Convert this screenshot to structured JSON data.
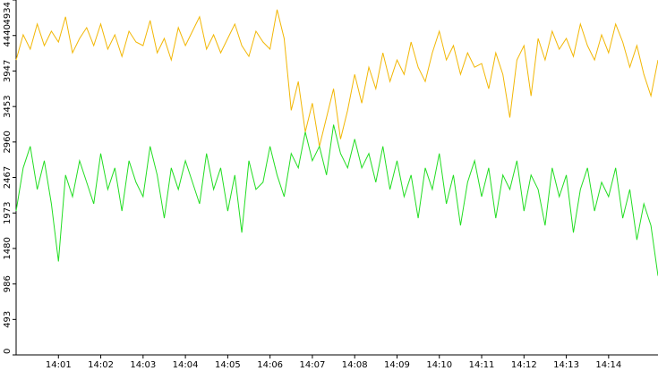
{
  "chart_data": {
    "type": "line",
    "categories": [
      null,
      null,
      null,
      null,
      null,
      null,
      "14:01",
      null,
      null,
      null,
      null,
      null,
      "14:02",
      null,
      null,
      null,
      null,
      null,
      "14:03",
      null,
      null,
      null,
      null,
      null,
      "14:04",
      null,
      null,
      null,
      null,
      null,
      "14:05",
      null,
      null,
      null,
      null,
      null,
      "14:06",
      null,
      null,
      null,
      null,
      null,
      "14:07",
      null,
      null,
      null,
      null,
      null,
      "14:08",
      null,
      null,
      null,
      null,
      null,
      "14:09",
      null,
      null,
      null,
      null,
      null,
      "14:10",
      null,
      null,
      null,
      null,
      null,
      "14:11",
      null,
      null,
      null,
      null,
      null,
      "14:12",
      null,
      null,
      null,
      null,
      null,
      "14:13",
      null,
      null,
      null,
      null,
      null,
      "14:14",
      null,
      null,
      null,
      null,
      null,
      null,
      null
    ],
    "series": [
      {
        "color": "#f2b705",
        "values": [
          4100,
          4450,
          4250,
          4600,
          4300,
          4500,
          4350,
          4700,
          4200,
          4400,
          4550,
          4300,
          4600,
          4250,
          4450,
          4150,
          4500,
          4350,
          4300,
          4650,
          4200,
          4400,
          4100,
          4550,
          4300,
          4500,
          4700,
          4250,
          4450,
          4200,
          4400,
          4600,
          4300,
          4150,
          4500,
          4350,
          4250,
          4800,
          4400,
          3400,
          3800,
          3100,
          3500,
          2900,
          3300,
          3700,
          3000,
          3400,
          3900,
          3500,
          4000,
          3700,
          4200,
          3800,
          4100,
          3900,
          4350,
          4000,
          3800,
          4200,
          4500,
          4100,
          4300,
          3900,
          4200,
          4000,
          4050,
          3700,
          4200,
          3900,
          3300,
          4100,
          4300,
          3600,
          4400,
          4100,
          4500,
          4250,
          4400,
          4150,
          4600,
          4300,
          4100,
          4450,
          4200,
          4600,
          4350,
          4000,
          4300,
          3900,
          3600,
          4100
        ]
      },
      {
        "color": "#22dd22",
        "values": [
          2000,
          2600,
          2900,
          2300,
          2700,
          2100,
          1300,
          2500,
          2200,
          2700,
          2400,
          2100,
          2800,
          2300,
          2600,
          2000,
          2700,
          2400,
          2200,
          2900,
          2500,
          1900,
          2600,
          2300,
          2700,
          2400,
          2100,
          2800,
          2300,
          2600,
          2000,
          2500,
          1700,
          2700,
          2300,
          2400,
          2900,
          2500,
          2200,
          2800,
          2600,
          3100,
          2700,
          2900,
          2500,
          3200,
          2800,
          2600,
          3000,
          2600,
          2800,
          2400,
          2900,
          2300,
          2700,
          2200,
          2500,
          1900,
          2600,
          2300,
          2800,
          2100,
          2500,
          1800,
          2400,
          2700,
          2200,
          2600,
          1900,
          2500,
          2300,
          2700,
          2000,
          2500,
          2300,
          1800,
          2600,
          2200,
          2500,
          1700,
          2300,
          2600,
          2000,
          2400,
          2200,
          2600,
          1900,
          2300,
          1600,
          2100,
          1800,
          1100
        ]
      }
    ],
    "ylim": [
      0,
      4934
    ],
    "yticks": [
      0,
      493,
      986,
      1480,
      1973,
      2467,
      2960,
      3453,
      3947,
      4440,
      4934
    ]
  }
}
